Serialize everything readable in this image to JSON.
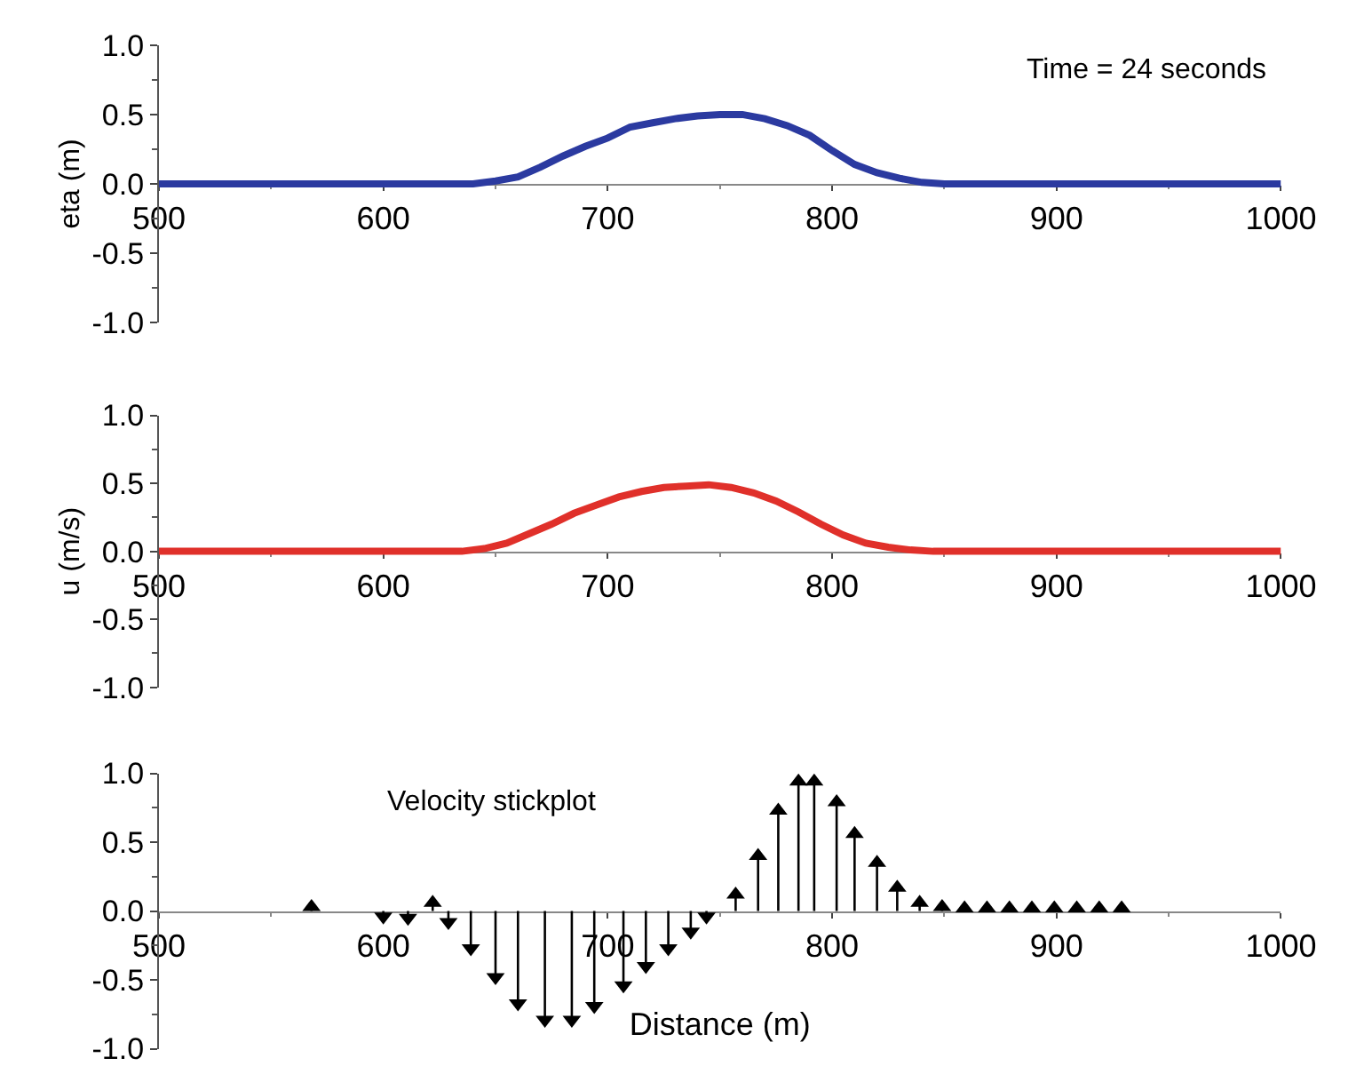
{
  "chart_data": [
    {
      "type": "line",
      "ylabel": "eta (m)",
      "annotations": [
        "Time = 24 seconds"
      ],
      "xlim": [
        500,
        1000
      ],
      "xticks": [
        500,
        600,
        700,
        800,
        900,
        1000
      ],
      "ylim": [
        -1.0,
        1.0
      ],
      "yticks": [
        {
          "value": -1.0,
          "label": "-1.0"
        },
        {
          "value": -0.5,
          "label": "-0.5"
        },
        {
          "value": 0,
          "label": "0.0"
        },
        {
          "value": 0.5,
          "label": "0.5"
        },
        {
          "value": 1.0,
          "label": "1.0"
        }
      ],
      "series": [
        {
          "color": "#2b3aa0",
          "x": [
            500,
            640,
            650,
            660,
            670,
            680,
            690,
            700,
            710,
            720,
            730,
            740,
            750,
            760,
            770,
            780,
            790,
            800,
            810,
            820,
            830,
            840,
            850,
            1000
          ],
          "values": [
            0,
            0,
            0.02,
            0.05,
            0.12,
            0.2,
            0.27,
            0.33,
            0.41,
            0.44,
            0.47,
            0.49,
            0.5,
            0.5,
            0.47,
            0.42,
            0.35,
            0.24,
            0.14,
            0.08,
            0.04,
            0.01,
            0,
            0
          ]
        }
      ]
    },
    {
      "type": "line",
      "ylabel": "u (m/s)",
      "xlim": [
        500,
        1000
      ],
      "xticks": [
        500,
        600,
        700,
        800,
        900,
        1000
      ],
      "ylim": [
        -1.0,
        1.0
      ],
      "yticks": [
        {
          "value": -1.0,
          "label": "-1.0"
        },
        {
          "value": -0.5,
          "label": "-0.5"
        },
        {
          "value": 0,
          "label": "0.0"
        },
        {
          "value": 0.5,
          "label": "0.5"
        },
        {
          "value": 1.0,
          "label": "1.0"
        }
      ],
      "series": [
        {
          "color": "#e0302a",
          "x": [
            500,
            635,
            645,
            655,
            665,
            675,
            685,
            695,
            705,
            715,
            725,
            735,
            745,
            755,
            765,
            775,
            785,
            795,
            805,
            815,
            825,
            835,
            845,
            1000
          ],
          "values": [
            0,
            0,
            0.02,
            0.06,
            0.13,
            0.2,
            0.28,
            0.34,
            0.4,
            0.44,
            0.47,
            0.48,
            0.49,
            0.47,
            0.43,
            0.37,
            0.29,
            0.2,
            0.12,
            0.06,
            0.03,
            0.01,
            0,
            0
          ]
        }
      ]
    },
    {
      "type": "lollipop",
      "xlabel": "Distance (m)",
      "annotations": [
        "Velocity stickplot"
      ],
      "xlim": [
        500,
        1000
      ],
      "xticks": [
        500,
        600,
        700,
        800,
        900,
        1000
      ],
      "ylim": [
        -1.0,
        1.0
      ],
      "yticks": [
        {
          "value": -1.0,
          "label": "-1.0"
        },
        {
          "value": -0.5,
          "label": "-0.5"
        },
        {
          "value": 0,
          "label": "0.0"
        },
        {
          "value": 0.5,
          "label": "0.5"
        },
        {
          "value": 1.0,
          "label": "1.0"
        }
      ],
      "marker": "triangle",
      "series": [
        {
          "color": "#000000",
          "x": [
            568,
            600,
            611,
            622,
            629,
            639,
            650,
            660,
            672,
            684,
            694,
            707,
            717,
            727,
            737,
            744,
            757,
            767,
            776,
            785,
            792,
            802,
            810,
            820,
            829,
            839,
            849,
            859,
            869,
            879,
            889,
            899,
            909,
            919,
            929
          ],
          "values": [
            0.03,
            -0.04,
            -0.05,
            0.06,
            -0.08,
            -0.27,
            -0.48,
            -0.67,
            -0.79,
            -0.79,
            -0.69,
            -0.54,
            -0.4,
            -0.27,
            -0.15,
            -0.04,
            0.12,
            0.4,
            0.73,
            0.94,
            0.94,
            0.79,
            0.56,
            0.35,
            0.17,
            0.06,
            0.03,
            0.02,
            0.02,
            0.02,
            0.02,
            0.02,
            0.02,
            0.02,
            0.02
          ]
        }
      ]
    }
  ]
}
